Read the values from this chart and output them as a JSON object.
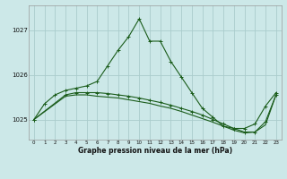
{
  "title": "Graphe pression niveau de la mer (hPa)",
  "bg_color": "#cce8e8",
  "grid_color": "#aacccc",
  "line_color": "#1a5c1a",
  "xlim": [
    -0.5,
    23.5
  ],
  "ylim": [
    1024.55,
    1027.55
  ],
  "yticks": [
    1025,
    1026,
    1027
  ],
  "xticks": [
    0,
    1,
    2,
    3,
    4,
    5,
    6,
    7,
    8,
    9,
    10,
    11,
    12,
    13,
    14,
    15,
    16,
    17,
    18,
    19,
    20,
    21,
    22,
    23
  ],
  "series1_x": [
    0,
    1,
    2,
    3,
    4,
    5,
    6,
    7,
    8,
    9,
    10,
    11,
    12,
    13,
    14,
    15,
    16,
    17,
    18,
    19,
    20,
    21,
    22,
    23
  ],
  "series1_y": [
    1025.0,
    1025.35,
    1025.55,
    1025.65,
    1025.7,
    1025.75,
    1025.85,
    1026.2,
    1026.55,
    1026.85,
    1027.25,
    1026.75,
    1026.75,
    1026.3,
    1025.95,
    1025.6,
    1025.25,
    1025.05,
    1024.85,
    1024.8,
    1024.8,
    1024.9,
    1025.3,
    1025.6
  ],
  "series2_x": [
    0,
    3,
    4,
    5,
    6,
    7,
    8,
    9,
    10,
    11,
    12,
    13,
    14,
    15,
    16,
    17,
    18,
    19,
    20,
    21,
    22,
    23
  ],
  "series2_y": [
    1025.0,
    1025.55,
    1025.6,
    1025.6,
    1025.6,
    1025.58,
    1025.55,
    1025.52,
    1025.48,
    1025.43,
    1025.38,
    1025.32,
    1025.25,
    1025.18,
    1025.1,
    1025.0,
    1024.9,
    1024.8,
    1024.72,
    1024.72,
    1024.95,
    1025.55
  ],
  "series3_x": [
    0,
    3,
    4,
    5,
    6,
    7,
    8,
    9,
    10,
    11,
    12,
    13,
    14,
    15,
    16,
    17,
    18,
    19,
    20,
    21,
    22,
    23
  ],
  "series3_y": [
    1025.0,
    1025.52,
    1025.55,
    1025.55,
    1025.52,
    1025.5,
    1025.48,
    1025.44,
    1025.4,
    1025.36,
    1025.3,
    1025.25,
    1025.18,
    1025.1,
    1025.02,
    1024.94,
    1024.85,
    1024.76,
    1024.7,
    1024.72,
    1024.88,
    1025.55
  ]
}
